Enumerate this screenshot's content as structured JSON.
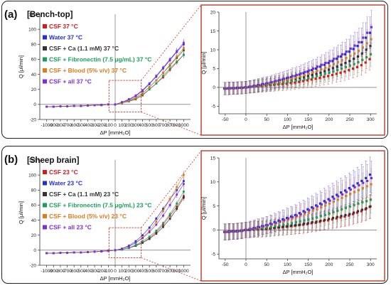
{
  "colors": {
    "CSF": "#d7191c",
    "Water": "#1f2fd6",
    "Ca": "#333333",
    "Fibronectin": "#1a9e5a",
    "Blood": "#e07b1a",
    "all": "#7b2fd6",
    "zoom_box": "#c0392b"
  },
  "panels": [
    {
      "letter": "(a)",
      "title": "[Bench-top]",
      "legend": [
        "CSF 37 °C",
        "Water 37 °C",
        "CSF + Ca (1.1 mM) 37 °C",
        "CSF + Fibronectin (7.5 μg/mL) 37 °C",
        "CSF + Blood (5% v/v) 37 °C",
        "CSF + all 37 °C"
      ],
      "main": {
        "ylabel": "Q [μl/min]",
        "xlabel": "ΔP [mmH₂O]",
        "yticks": [
          "120",
          "100",
          "80",
          "60",
          "40",
          "20",
          "0",
          "-20"
        ],
        "xticks": [
          "-1000",
          "-900",
          "-800",
          "-700",
          "-600",
          "-500",
          "-400",
          "-300",
          "-200",
          "-100",
          "0",
          "100",
          "200",
          "300",
          "400",
          "500",
          "600",
          "700",
          "800",
          "900",
          "1000"
        ]
      },
      "zoom": {
        "ylabel": "Q [μl/min]",
        "xlabel": "ΔP [mmH₂O]",
        "yticks": [
          "20",
          "15",
          "10",
          "5",
          "0",
          "-5"
        ],
        "xticks": [
          "-50",
          "0",
          "50",
          "100",
          "150",
          "200",
          "250",
          "300"
        ]
      }
    },
    {
      "letter": "(b)",
      "title": "[Sheep brain]",
      "legend": [
        "CSF 23 °C",
        "Water 23 °C",
        "CSF + Ca (1.1 mM) 23 °C",
        "CSF + Fibronectin (7.5 μg/mL) 23 °C",
        "CSF + Blood (5% v/v) 23 °C",
        "CSF + all 23 °C"
      ],
      "main": {
        "ylabel": "Q [μl/min]",
        "xlabel": "ΔP [mmH₂O]",
        "yticks": [
          "120",
          "100",
          "80",
          "60",
          "40",
          "20",
          "0",
          "-20"
        ],
        "xticks": [
          "-1000",
          "-900",
          "-800",
          "-700",
          "-600",
          "-500",
          "-400",
          "-300",
          "-200",
          "-100",
          "0",
          "100",
          "200",
          "300",
          "400",
          "500",
          "600",
          "700",
          "800",
          "900",
          "1000"
        ]
      },
      "zoom": {
        "ylabel": "Q [μl/min]",
        "xlabel": "ΔP [mmH₂O]",
        "yticks": [
          "15",
          "10",
          "5",
          "0",
          "-5"
        ],
        "xticks": [
          "-50",
          "0",
          "50",
          "100",
          "150",
          "200",
          "250",
          "300"
        ]
      }
    }
  ],
  "chart_data": [
    {
      "type": "scatter",
      "title": "[Bench-top] main",
      "x": [
        -1000,
        -900,
        -800,
        -700,
        -600,
        -500,
        -400,
        -300,
        -200,
        -100,
        0,
        100,
        200,
        300,
        400,
        500,
        600,
        700,
        800,
        900,
        1000
      ],
      "xlim": [
        -1100,
        1100
      ],
      "ylim": [
        -20,
        120
      ],
      "xlabel": "ΔP [mmH₂O]",
      "ylabel": "Q [μl/min]",
      "series": [
        {
          "name": "CSF 37 °C",
          "values": [
            -3,
            -3,
            -2.5,
            -2.5,
            -2,
            -2,
            -1.5,
            -1,
            -1,
            0,
            0,
            2,
            4,
            7,
            12,
            20,
            28,
            36,
            46,
            56,
            66
          ]
        },
        {
          "name": "Water 37 °C",
          "values": [
            -3,
            -3,
            -2.5,
            -2.5,
            -2,
            -2,
            -1.5,
            -1,
            -0.5,
            0,
            0,
            3,
            6,
            11,
            18,
            27,
            37,
            48,
            59,
            70,
            80
          ]
        },
        {
          "name": "CSF + Ca (1.1 mM) 37 °C",
          "values": [
            -3,
            -3,
            -2.5,
            -2.5,
            -2,
            -2,
            -1.5,
            -1,
            -1,
            0,
            0,
            2,
            5,
            9,
            15,
            23,
            32,
            42,
            52,
            62,
            72
          ]
        },
        {
          "name": "CSF + Fibronectin (7.5 μg/mL) 37 °C",
          "values": [
            -3,
            -3,
            -2.5,
            -2.5,
            -2,
            -2,
            -1.5,
            -1,
            -1,
            0,
            0,
            2,
            4,
            8,
            13,
            20,
            28,
            38,
            48,
            57,
            66
          ]
        },
        {
          "name": "CSF + Blood (5% v/v) 37 °C",
          "values": [
            -3,
            -3,
            -2.5,
            -2.5,
            -2,
            -2,
            -1.5,
            -1,
            -1,
            0,
            0,
            2,
            5,
            9,
            15,
            23,
            32,
            42,
            53,
            64,
            75
          ]
        },
        {
          "name": "CSF + all 37 °C",
          "values": [
            -3,
            -3,
            -2.5,
            -2.5,
            -2,
            -2,
            -1.5,
            -1,
            -0.5,
            0,
            0,
            3,
            7,
            12,
            19,
            28,
            38,
            49,
            60,
            71,
            82
          ]
        }
      ]
    },
    {
      "type": "scatter",
      "title": "[Bench-top] zoom",
      "x": [
        -50,
        -40,
        -30,
        -20,
        -10,
        0,
        10,
        20,
        30,
        40,
        50,
        60,
        70,
        80,
        90,
        100,
        110,
        120,
        130,
        140,
        150,
        160,
        170,
        180,
        190,
        200,
        210,
        220,
        230,
        240,
        250,
        260,
        270,
        280,
        290,
        300
      ],
      "xlim": [
        -65,
        315
      ],
      "ylim": [
        -7,
        20
      ],
      "xlabel": "ΔP [mmH₂O]",
      "ylabel": "Q [μl/min]",
      "series": [
        {
          "name": "CSF 37 °C",
          "values": [
            -0.3,
            -0.3,
            -0.2,
            -0.2,
            -0.1,
            0,
            0.1,
            0.2,
            0.3,
            0.4,
            0.5,
            0.6,
            0.7,
            0.8,
            0.9,
            1.0,
            1.2,
            1.3,
            1.5,
            1.7,
            1.9,
            2.1,
            2.3,
            2.5,
            2.8,
            3.0,
            3.3,
            3.6,
            3.9,
            4.2,
            4.6,
            5.0,
            5.4,
            5.9,
            6.6,
            7.5
          ]
        },
        {
          "name": "Water 37 °C",
          "values": [
            -0.3,
            -0.2,
            -0.2,
            -0.1,
            -0.1,
            0,
            0.2,
            0.4,
            0.6,
            0.8,
            1.0,
            1.2,
            1.5,
            1.8,
            2.1,
            2.4,
            2.7,
            3.0,
            3.4,
            3.8,
            4.2,
            4.6,
            5.0,
            5.5,
            6.0,
            6.5,
            7.0,
            7.6,
            8.2,
            8.8,
            9.5,
            10.2,
            11.0,
            12.0,
            13.2,
            14.5
          ]
        },
        {
          "name": "CSF + Ca (1.1 mM) 37 °C",
          "values": [
            -0.3,
            -0.3,
            -0.2,
            -0.2,
            -0.1,
            0,
            0.1,
            0.3,
            0.4,
            0.6,
            0.7,
            0.9,
            1.1,
            1.3,
            1.5,
            1.7,
            1.9,
            2.1,
            2.4,
            2.7,
            3.0,
            3.3,
            3.6,
            3.9,
            4.3,
            4.7,
            5.1,
            5.5,
            6.0,
            6.5,
            7.0,
            7.6,
            8.2,
            9.0,
            10.0,
            11.0
          ]
        },
        {
          "name": "CSF + Fibronectin (7.5 μg/mL) 37 °C",
          "values": [
            -0.3,
            -0.3,
            -0.2,
            -0.2,
            -0.1,
            0,
            0.1,
            0.2,
            0.3,
            0.5,
            0.6,
            0.7,
            0.9,
            1.0,
            1.2,
            1.4,
            1.6,
            1.8,
            2.0,
            2.2,
            2.5,
            2.7,
            3.0,
            3.3,
            3.6,
            3.9,
            4.2,
            4.6,
            5.0,
            5.4,
            5.8,
            6.2,
            6.7,
            7.3,
            8.0,
            8.8
          ]
        },
        {
          "name": "CSF + Blood (5% v/v) 37 °C",
          "values": [
            -0.3,
            -0.3,
            -0.2,
            -0.2,
            -0.1,
            0,
            0.2,
            0.3,
            0.5,
            0.7,
            0.9,
            1.1,
            1.3,
            1.5,
            1.8,
            2.0,
            2.3,
            2.6,
            2.9,
            3.2,
            3.6,
            4.0,
            4.4,
            4.8,
            5.2,
            5.7,
            6.2,
            6.7,
            7.2,
            7.8,
            8.4,
            9.0,
            9.7,
            10.6,
            11.7,
            12.8
          ]
        },
        {
          "name": "CSF + all 37 °C",
          "values": [
            -0.3,
            -0.2,
            -0.2,
            -0.1,
            -0.1,
            0,
            0.2,
            0.4,
            0.6,
            0.9,
            1.1,
            1.4,
            1.7,
            2.0,
            2.3,
            2.6,
            3.0,
            3.3,
            3.7,
            4.1,
            4.5,
            5.0,
            5.5,
            6.0,
            6.5,
            7.0,
            7.6,
            8.2,
            8.8,
            9.5,
            10.3,
            11.1,
            12.0,
            13.2,
            14.5,
            16.0
          ]
        }
      ]
    },
    {
      "type": "scatter",
      "title": "[Sheep brain] main",
      "x": [
        -1000,
        -900,
        -800,
        -700,
        -600,
        -500,
        -400,
        -300,
        -200,
        -100,
        0,
        100,
        200,
        300,
        400,
        500,
        600,
        700,
        800,
        900,
        1000
      ],
      "xlim": [
        -1100,
        1100
      ],
      "ylim": [
        -20,
        120
      ],
      "xlabel": "ΔP [mmH₂O]",
      "ylabel": "Q [μl/min]",
      "series": [
        {
          "name": "CSF 23 °C",
          "values": [
            -4,
            -4,
            -3.5,
            -3.5,
            -3,
            -3,
            -2.5,
            -2,
            -1.5,
            -1,
            0,
            1,
            3,
            6,
            10,
            16,
            24,
            34,
            46,
            58,
            72
          ]
        },
        {
          "name": "Water 23 °C",
          "values": [
            -4,
            -4,
            -3.5,
            -3.5,
            -3,
            -3,
            -2.5,
            -2,
            -1.5,
            -0.5,
            0,
            2,
            6,
            12,
            20,
            30,
            42,
            55,
            68,
            80,
            92
          ]
        },
        {
          "name": "CSF + Ca (1.1 mM) 23 °C",
          "values": [
            -4,
            -4,
            -3.5,
            -3.5,
            -3,
            -3,
            -2.5,
            -2,
            -1.5,
            -1,
            0,
            1,
            3,
            6,
            10,
            15,
            22,
            31,
            42,
            55,
            70
          ]
        },
        {
          "name": "CSF + Fibronectin (7.5 μg/mL) 23 °C",
          "values": [
            -4,
            -4,
            -3.5,
            -3.5,
            -3,
            -3,
            -2.5,
            -2,
            -1.5,
            -1,
            0,
            1,
            3,
            7,
            12,
            18,
            26,
            36,
            48,
            62,
            78
          ]
        },
        {
          "name": "CSF + Blood (5% v/v) 23 °C",
          "values": [
            -4,
            -4,
            -3.5,
            -3.5,
            -3,
            -3,
            -2.5,
            -2,
            -1.5,
            -1,
            0,
            2,
            5,
            10,
            17,
            26,
            38,
            52,
            68,
            84,
            100
          ]
        },
        {
          "name": "CSF + all 23 °C",
          "values": [
            -4,
            -4,
            -3.5,
            -3.5,
            -3,
            -3,
            -2.5,
            -2,
            -1.5,
            -0.5,
            0,
            2,
            5,
            10,
            16,
            24,
            34,
            46,
            60,
            74,
            88
          ]
        }
      ]
    },
    {
      "type": "scatter",
      "title": "[Sheep brain] zoom",
      "x": [
        -50,
        -40,
        -30,
        -20,
        -10,
        0,
        10,
        20,
        30,
        40,
        50,
        60,
        70,
        80,
        90,
        100,
        110,
        120,
        130,
        140,
        150,
        160,
        170,
        180,
        190,
        200,
        210,
        220,
        230,
        240,
        250,
        260,
        270,
        280,
        290,
        300
      ],
      "xlim": [
        -65,
        315
      ],
      "ylim": [
        -6,
        15
      ],
      "xlabel": "ΔP [mmH₂O]",
      "ylabel": "Q [μl/min]",
      "series": [
        {
          "name": "CSF 23 °C",
          "values": [
            -0.4,
            -0.4,
            -0.3,
            -0.3,
            -0.2,
            0,
            0,
            0.1,
            0.1,
            0.2,
            0.2,
            0.3,
            0.4,
            0.5,
            0.6,
            0.7,
            0.8,
            0.9,
            1.0,
            1.1,
            1.2,
            1.4,
            1.5,
            1.7,
            1.9,
            2.0,
            2.2,
            2.4,
            2.6,
            2.8,
            3.0,
            3.3,
            3.6,
            3.9,
            4.3,
            4.8
          ]
        },
        {
          "name": "Water 23 °C",
          "values": [
            -0.4,
            -0.3,
            -0.3,
            -0.2,
            -0.1,
            0,
            0.2,
            0.4,
            0.6,
            0.8,
            1.0,
            1.3,
            1.6,
            1.9,
            2.2,
            2.5,
            2.8,
            3.1,
            3.5,
            3.9,
            4.3,
            4.7,
            5.1,
            5.5,
            6.0,
            6.4,
            6.9,
            7.3,
            7.8,
            8.2,
            8.7,
            9.2,
            9.7,
            10.2,
            10.8,
            11.5
          ]
        },
        {
          "name": "CSF + Ca (1.1 mM) 23 °C",
          "values": [
            -0.4,
            -0.4,
            -0.3,
            -0.3,
            -0.2,
            0,
            0,
            0.1,
            0.2,
            0.2,
            0.3,
            0.4,
            0.5,
            0.6,
            0.7,
            0.8,
            0.9,
            1.0,
            1.1,
            1.3,
            1.4,
            1.6,
            1.7,
            1.9,
            2.1,
            2.3,
            2.5,
            2.7,
            2.9,
            3.1,
            3.3,
            3.6,
            3.9,
            4.2,
            4.5,
            4.9
          ]
        },
        {
          "name": "CSF + Fibronectin (7.5 μg/mL) 23 °C",
          "values": [
            -0.4,
            -0.4,
            -0.3,
            -0.3,
            -0.2,
            0,
            0.1,
            0.2,
            0.3,
            0.4,
            0.5,
            0.6,
            0.8,
            0.9,
            1.1,
            1.2,
            1.4,
            1.6,
            1.8,
            2.0,
            2.2,
            2.4,
            2.6,
            2.9,
            3.1,
            3.4,
            3.7,
            4.0,
            4.3,
            4.6,
            4.9,
            5.2,
            5.5,
            5.8,
            6.0,
            6.3
          ]
        },
        {
          "name": "CSF + Blood (5% v/v) 23 °C",
          "values": [
            -0.4,
            -0.3,
            -0.3,
            -0.2,
            -0.1,
            0,
            0.2,
            0.3,
            0.5,
            0.7,
            0.9,
            1.1,
            1.3,
            1.6,
            1.8,
            2.1,
            2.4,
            2.7,
            3.0,
            3.3,
            3.6,
            4.0,
            4.3,
            4.7,
            5.1,
            5.5,
            5.9,
            6.3,
            6.7,
            7.1,
            7.5,
            7.9,
            8.3,
            8.7,
            9.1,
            9.5
          ]
        },
        {
          "name": "CSF + all 23 °C",
          "values": [
            -0.4,
            -0.3,
            -0.3,
            -0.2,
            -0.1,
            0,
            0.2,
            0.4,
            0.6,
            0.8,
            1.0,
            1.2,
            1.5,
            1.8,
            2.1,
            2.4,
            2.7,
            3.0,
            3.3,
            3.7,
            4.1,
            4.5,
            4.9,
            5.3,
            5.7,
            6.1,
            6.5,
            7.0,
            7.4,
            7.9,
            8.4,
            8.9,
            9.3,
            9.8,
            10.2,
            10.8
          ]
        }
      ]
    }
  ]
}
